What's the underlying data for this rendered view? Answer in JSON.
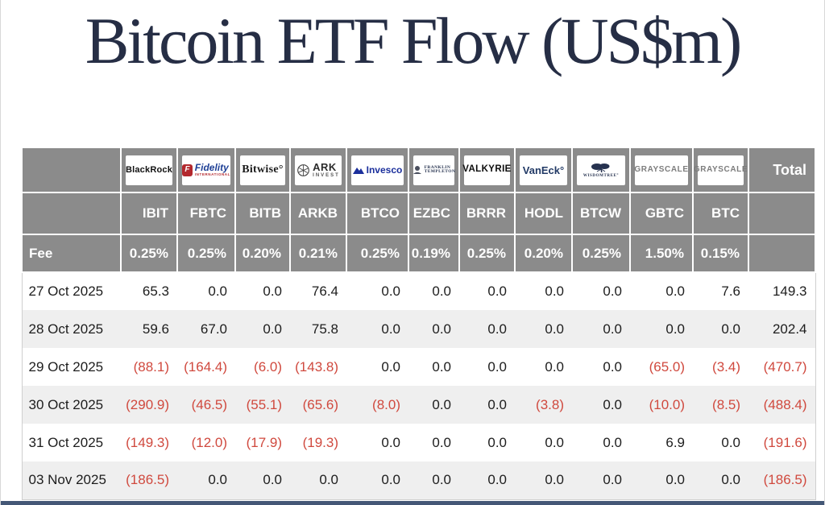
{
  "title": "Bitcoin ETF Flow (US$m)",
  "chart_data": {
    "type": "table",
    "title": "Bitcoin ETF Flow (US$m)",
    "fee_label": "Fee",
    "total_label": "Total",
    "columns": [
      {
        "id": "blackrock",
        "provider": "BlackRock",
        "ticker": "IBIT",
        "fee": "0.25%"
      },
      {
        "id": "fidelity",
        "provider": "Fidelity",
        "ticker": "FBTC",
        "fee": "0.25%"
      },
      {
        "id": "bitwise",
        "provider": "Bitwise",
        "ticker": "BITB",
        "fee": "0.20%"
      },
      {
        "id": "ark",
        "provider": "ARK Invest",
        "ticker": "ARKB",
        "fee": "0.21%"
      },
      {
        "id": "invesco",
        "provider": "Invesco",
        "ticker": "BTCO",
        "fee": "0.25%"
      },
      {
        "id": "franklin",
        "provider": "Franklin Templeton",
        "ticker": "EZBC",
        "fee": "0.19%"
      },
      {
        "id": "valkyrie",
        "provider": "Valkyrie",
        "ticker": "BRRR",
        "fee": "0.25%"
      },
      {
        "id": "vaneck",
        "provider": "VanEck",
        "ticker": "HODL",
        "fee": "0.20%"
      },
      {
        "id": "wisdomtree",
        "provider": "WisdomTree",
        "ticker": "BTCW",
        "fee": "0.25%"
      },
      {
        "id": "grayscale1",
        "provider": "Grayscale",
        "ticker": "GBTC",
        "fee": "1.50%"
      },
      {
        "id": "grayscale2",
        "provider": "Grayscale",
        "ticker": "BTC",
        "fee": "0.15%"
      }
    ],
    "rows": [
      {
        "date": "27 Oct 2025",
        "values": [
          "65.3",
          "0.0",
          "0.0",
          "76.4",
          "0.0",
          "0.0",
          "0.0",
          "0.0",
          "0.0",
          "0.0",
          "7.6"
        ],
        "total": "149.3"
      },
      {
        "date": "28 Oct 2025",
        "values": [
          "59.6",
          "67.0",
          "0.0",
          "75.8",
          "0.0",
          "0.0",
          "0.0",
          "0.0",
          "0.0",
          "0.0",
          "0.0"
        ],
        "total": "202.4"
      },
      {
        "date": "29 Oct 2025",
        "values": [
          "(88.1)",
          "(164.4)",
          "(6.0)",
          "(143.8)",
          "0.0",
          "0.0",
          "0.0",
          "0.0",
          "0.0",
          "(65.0)",
          "(3.4)"
        ],
        "total": "(470.7)"
      },
      {
        "date": "30 Oct 2025",
        "values": [
          "(290.9)",
          "(46.5)",
          "(55.1)",
          "(65.6)",
          "(8.0)",
          "0.0",
          "0.0",
          "(3.8)",
          "0.0",
          "(10.0)",
          "(8.5)"
        ],
        "total": "(488.4)"
      },
      {
        "date": "31 Oct 2025",
        "values": [
          "(149.3)",
          "(12.0)",
          "(17.9)",
          "(19.3)",
          "0.0",
          "0.0",
          "0.0",
          "0.0",
          "0.0",
          "6.9",
          "0.0"
        ],
        "total": "(191.6)"
      },
      {
        "date": "03 Nov 2025",
        "values": [
          "(186.5)",
          "0.0",
          "0.0",
          "0.0",
          "0.0",
          "0.0",
          "0.0",
          "0.0",
          "0.0",
          "0.0",
          "0.0"
        ],
        "total": "(186.5)"
      }
    ]
  },
  "logos": {
    "blackrock": "BlackRock",
    "fidelity_icon_letter": "F",
    "fidelity": "Fidelity",
    "fidelity_sub": "INTERNATIONAL",
    "bitwise": "Bitwise°",
    "ark_top": "ARK",
    "ark_sub": "INVEST",
    "invesco": "Invesco",
    "franklin_1": "FRANKLIN",
    "franklin_2": "TEMPLETON",
    "valkyrie": "VALKYRIE",
    "vaneck": "VanEck°",
    "wisdomtree": "WISDOMTREE°",
    "grayscale": "GRAYSCALE"
  },
  "colors": {
    "title": "#262e45",
    "header_bg": "#8b8b8b",
    "row_alt": "#efefef",
    "negative": "#d0493e",
    "bottom_bar": "#445776"
  }
}
